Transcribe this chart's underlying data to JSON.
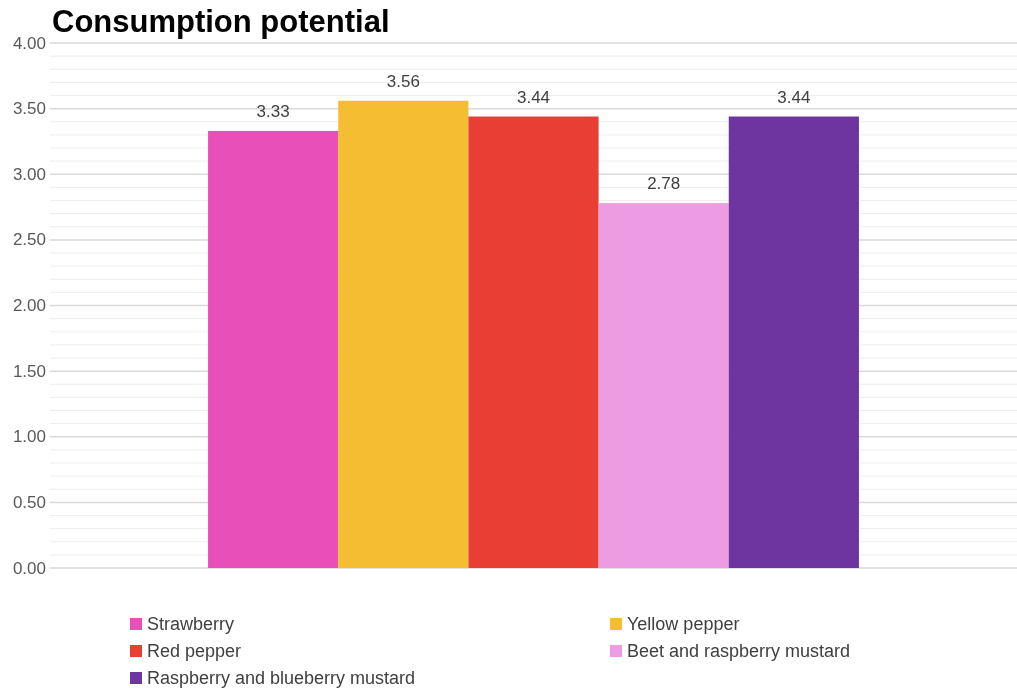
{
  "chart_data": {
    "type": "bar",
    "title": "Consumption potential",
    "categories": [
      null
    ],
    "series": [
      {
        "name": "Strawberry",
        "color": "#e84fb8",
        "values": [
          3.33
        ]
      },
      {
        "name": "Yellow pepper",
        "color": "#f5bd31",
        "values": [
          3.56
        ]
      },
      {
        "name": "Red pepper",
        "color": "#e83e33",
        "values": [
          3.44
        ]
      },
      {
        "name": "Beet and raspberry mustard",
        "color": "#ed9be3",
        "values": [
          2.78
        ]
      },
      {
        "name": "Raspberry and blueberry mustard",
        "color": "#6e34a0",
        "values": [
          3.44
        ]
      }
    ],
    "ylim": [
      0,
      4
    ],
    "yticks": [
      {
        "value": 0,
        "label": "0.00"
      },
      {
        "value": 0.1,
        "label": null
      },
      {
        "value": 0.2,
        "label": null
      },
      {
        "value": 0.3,
        "label": null
      },
      {
        "value": 0.4,
        "label": null
      },
      {
        "value": 0.5,
        "label": "0.50"
      },
      {
        "value": 0.6,
        "label": null
      },
      {
        "value": 0.7,
        "label": null
      },
      {
        "value": 0.8,
        "label": null
      },
      {
        "value": 0.9,
        "label": null
      },
      {
        "value": 1,
        "label": "1.00"
      },
      {
        "value": 1.1,
        "label": null
      },
      {
        "value": 1.2,
        "label": null
      },
      {
        "value": 1.3,
        "label": null
      },
      {
        "value": 1.4,
        "label": null
      },
      {
        "value": 1.5,
        "label": "1.50"
      },
      {
        "value": 1.6,
        "label": null
      },
      {
        "value": 1.7,
        "label": null
      },
      {
        "value": 1.8,
        "label": null
      },
      {
        "value": 1.9,
        "label": null
      },
      {
        "value": 2,
        "label": "2.00"
      },
      {
        "value": 2.1,
        "label": null
      },
      {
        "value": 2.2,
        "label": null
      },
      {
        "value": 2.3,
        "label": null
      },
      {
        "value": 2.4,
        "label": null
      },
      {
        "value": 2.5,
        "label": "2.50"
      },
      {
        "value": 2.6,
        "label": null
      },
      {
        "value": 2.7,
        "label": null
      },
      {
        "value": 2.8,
        "label": null
      },
      {
        "value": 2.9,
        "label": null
      },
      {
        "value": 3,
        "label": "3.00"
      },
      {
        "value": 3.1,
        "label": null
      },
      {
        "value": 3.2,
        "label": null
      },
      {
        "value": 3.3,
        "label": null
      },
      {
        "value": 3.4,
        "label": null
      },
      {
        "value": 3.5,
        "label": "3.50"
      },
      {
        "value": 3.6,
        "label": null
      },
      {
        "value": 3.7,
        "label": null
      },
      {
        "value": 3.8,
        "label": null
      },
      {
        "value": 3.9,
        "label": null
      },
      {
        "value": 4,
        "label": "4.00"
      }
    ],
    "grid": "y",
    "data_labels": true,
    "legend": "bottom"
  }
}
